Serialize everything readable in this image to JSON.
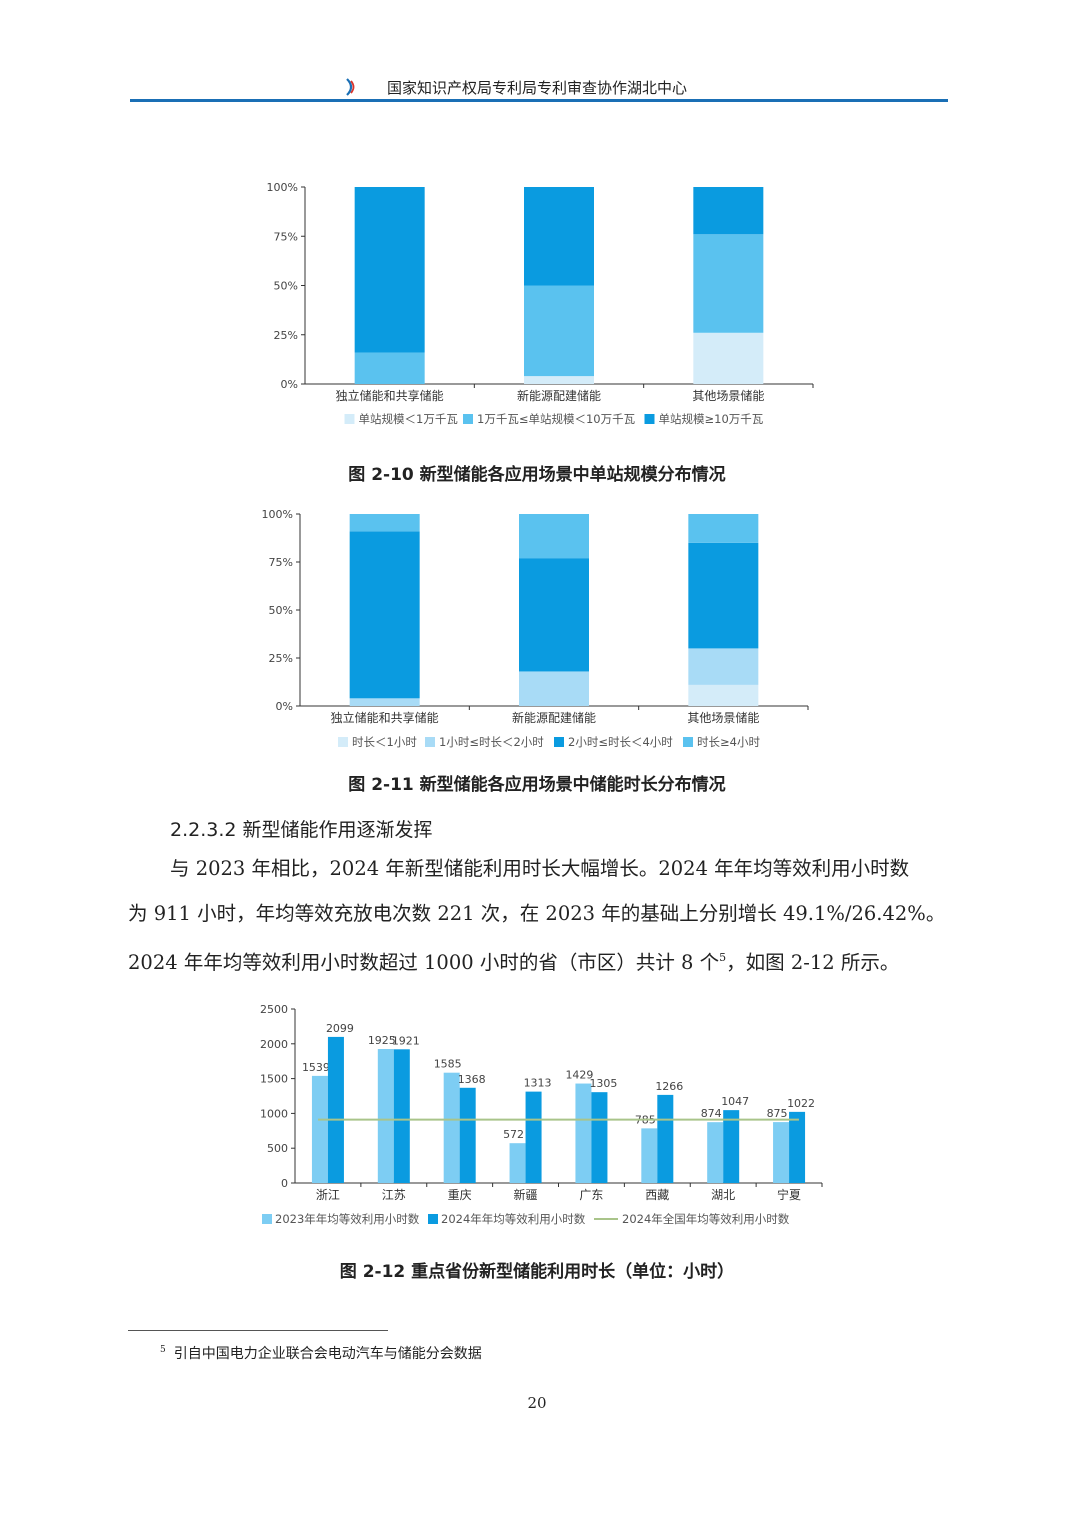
{
  "header": {
    "title": "国家知识产权局专利局专利审查协作湖北中心"
  },
  "figure1": {
    "caption": "图 2-10  新型储能各应用场景中单站规模分布情况",
    "chart_data": {
      "type": "bar",
      "stacked": true,
      "categories": [
        "独立储能和共享储能",
        "新能源配建储能",
        "其他场景储能"
      ],
      "series": [
        {
          "name": "单站规模＜1万千瓦",
          "color": "#d4ecf9",
          "values": [
            0,
            4,
            26
          ]
        },
        {
          "name": "1万千瓦≤单站规模＜10万千瓦",
          "color": "#5ac2ef",
          "values": [
            16,
            46,
            50
          ]
        },
        {
          "name": "单站规模≥10万千瓦",
          "color": "#0a9be0",
          "values": [
            84,
            50,
            24
          ]
        }
      ],
      "yticks": [
        "0%",
        "25%",
        "50%",
        "75%",
        "100%"
      ],
      "ylim": [
        0,
        100
      ]
    }
  },
  "figure2": {
    "caption": "图 2-11  新型储能各应用场景中储能时长分布情况",
    "chart_data": {
      "type": "bar",
      "stacked": true,
      "categories": [
        "独立储能和共享储能",
        "新能源配建储能",
        "其他场景储能"
      ],
      "series": [
        {
          "name": "时长＜1小时",
          "color": "#d4ecf9",
          "values": [
            0,
            0,
            11
          ]
        },
        {
          "name": "1小时≤时长＜2小时",
          "color": "#a8dbf6",
          "values": [
            4,
            18,
            19
          ]
        },
        {
          "name": "2小时≤时长＜4小时",
          "color": "#0a9be0",
          "values": [
            87,
            59,
            55
          ]
        },
        {
          "name": "时长≥4小时",
          "color": "#5ac2ef",
          "values": [
            9,
            23,
            15
          ]
        }
      ],
      "yticks": [
        "0%",
        "25%",
        "50%",
        "75%",
        "100%"
      ],
      "ylim": [
        0,
        100
      ]
    }
  },
  "section": {
    "heading": "2.2.3.2  新型储能作用逐渐发挥"
  },
  "paragraph": {
    "line1": "与 2023 年相比，2024 年新型储能利用时长大幅增长。2024 年年均等效利用小时数",
    "line2": "为 911 小时，年均等效充放电次数 221 次，在 2023 年的基础上分别增长 49.1%/26.42%。",
    "line3": "2024 年年均等效利用小时数超过 1000 小时的省（市区）共计 8 个",
    "line3_sup": "5",
    "line3_end": "，如图 2-12 所示。"
  },
  "figure3": {
    "caption": "图 2-12  重点省份新型储能利用时长（单位：小时）",
    "chart_data": {
      "type": "bar",
      "categories": [
        "浙江",
        "江苏",
        "重庆",
        "新疆",
        "广东",
        "西藏",
        "湖北",
        "宁夏"
      ],
      "series": [
        {
          "name": "2023年年均等效利用小时数",
          "color": "#7dcdf3",
          "values": [
            1539,
            1925,
            1585,
            572,
            1429,
            785,
            874,
            875
          ]
        },
        {
          "name": "2024年年均等效利用小时数",
          "color": "#0a9be0",
          "values": [
            2099,
            1921,
            1368,
            1313,
            1305,
            1266,
            1047,
            1022
          ]
        }
      ],
      "reference_line": {
        "name": "2024年全国年均等效利用小时数",
        "value": 911,
        "color": "#a9c48a"
      },
      "yticks": [
        "0",
        "500",
        "1000",
        "1500",
        "2000",
        "2500"
      ],
      "ylim": [
        0,
        2500
      ]
    }
  },
  "footnote": {
    "marker": "5",
    "text": "引自中国电力企业联合会电动汽车与储能分会数据"
  },
  "page": {
    "number": "20"
  }
}
